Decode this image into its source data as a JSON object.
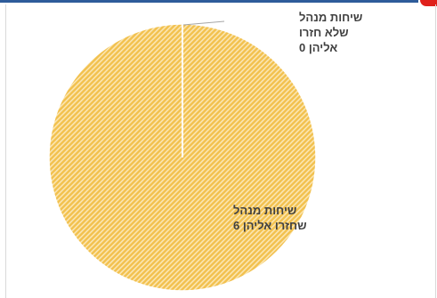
{
  "chart_data": {
    "type": "pie",
    "title": "",
    "categories": [
      "שיחות מנהל שלא חזרו אליהן",
      "שיחות מנהל שחזרו אליהן"
    ],
    "values": [
      0,
      6
    ],
    "data_labels": [
      [
        "שיחות מנהל",
        "שלא חזרו",
        "אליהן  0"
      ],
      [
        "שיחות מנהל",
        "שחזרו אליהן 6"
      ]
    ],
    "legend": "none",
    "colors": {
      "slice_fill": "#f2c14e",
      "slice_hatch": "#fbe6b3",
      "slice_border": "#ffffff",
      "label_text": "#404040",
      "leader_line": "#a6a6a6"
    }
  }
}
